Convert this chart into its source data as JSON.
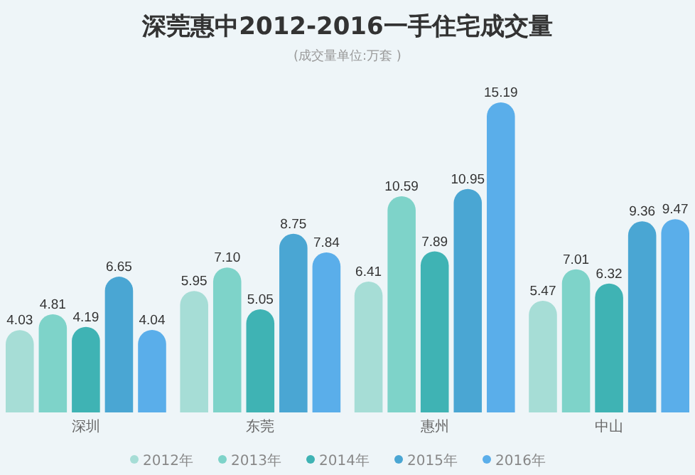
{
  "chart_data": {
    "type": "bar",
    "title": "深莞惠中2012-2016一手住宅成交量",
    "subtitle": "(成交量单位:万套 )",
    "categories": [
      "深圳",
      "东莞",
      "惠州",
      "中山"
    ],
    "series": [
      {
        "name": "2012年",
        "color": "#a6ddd6",
        "values": [
          4.03,
          5.95,
          6.41,
          5.47
        ],
        "value_labels": [
          "4.03",
          "5.95",
          "6.41",
          "5.47"
        ]
      },
      {
        "name": "2013年",
        "color": "#7ed3c9",
        "values": [
          4.81,
          7.1,
          10.59,
          7.01
        ],
        "value_labels": [
          "4.81",
          "7.10",
          "10.59",
          "7.01"
        ]
      },
      {
        "name": "2014年",
        "color": "#3fb3b4",
        "values": [
          4.19,
          5.05,
          7.89,
          6.32
        ],
        "value_labels": [
          "4.19",
          "5.05",
          "7.89",
          "6.32"
        ]
      },
      {
        "name": "2015年",
        "color": "#4aa6d3",
        "values": [
          6.65,
          8.75,
          10.95,
          9.36
        ],
        "value_labels": [
          "6.65",
          "8.75",
          "10.95",
          "9.36"
        ]
      },
      {
        "name": "2016年",
        "color": "#5aaeea",
        "values": [
          4.04,
          7.84,
          15.19,
          9.47
        ],
        "value_labels": [
          "4.04",
          "7.84",
          "15.19",
          "9.47"
        ]
      }
    ],
    "legend": "bottom",
    "tick_labels": "x"
  }
}
